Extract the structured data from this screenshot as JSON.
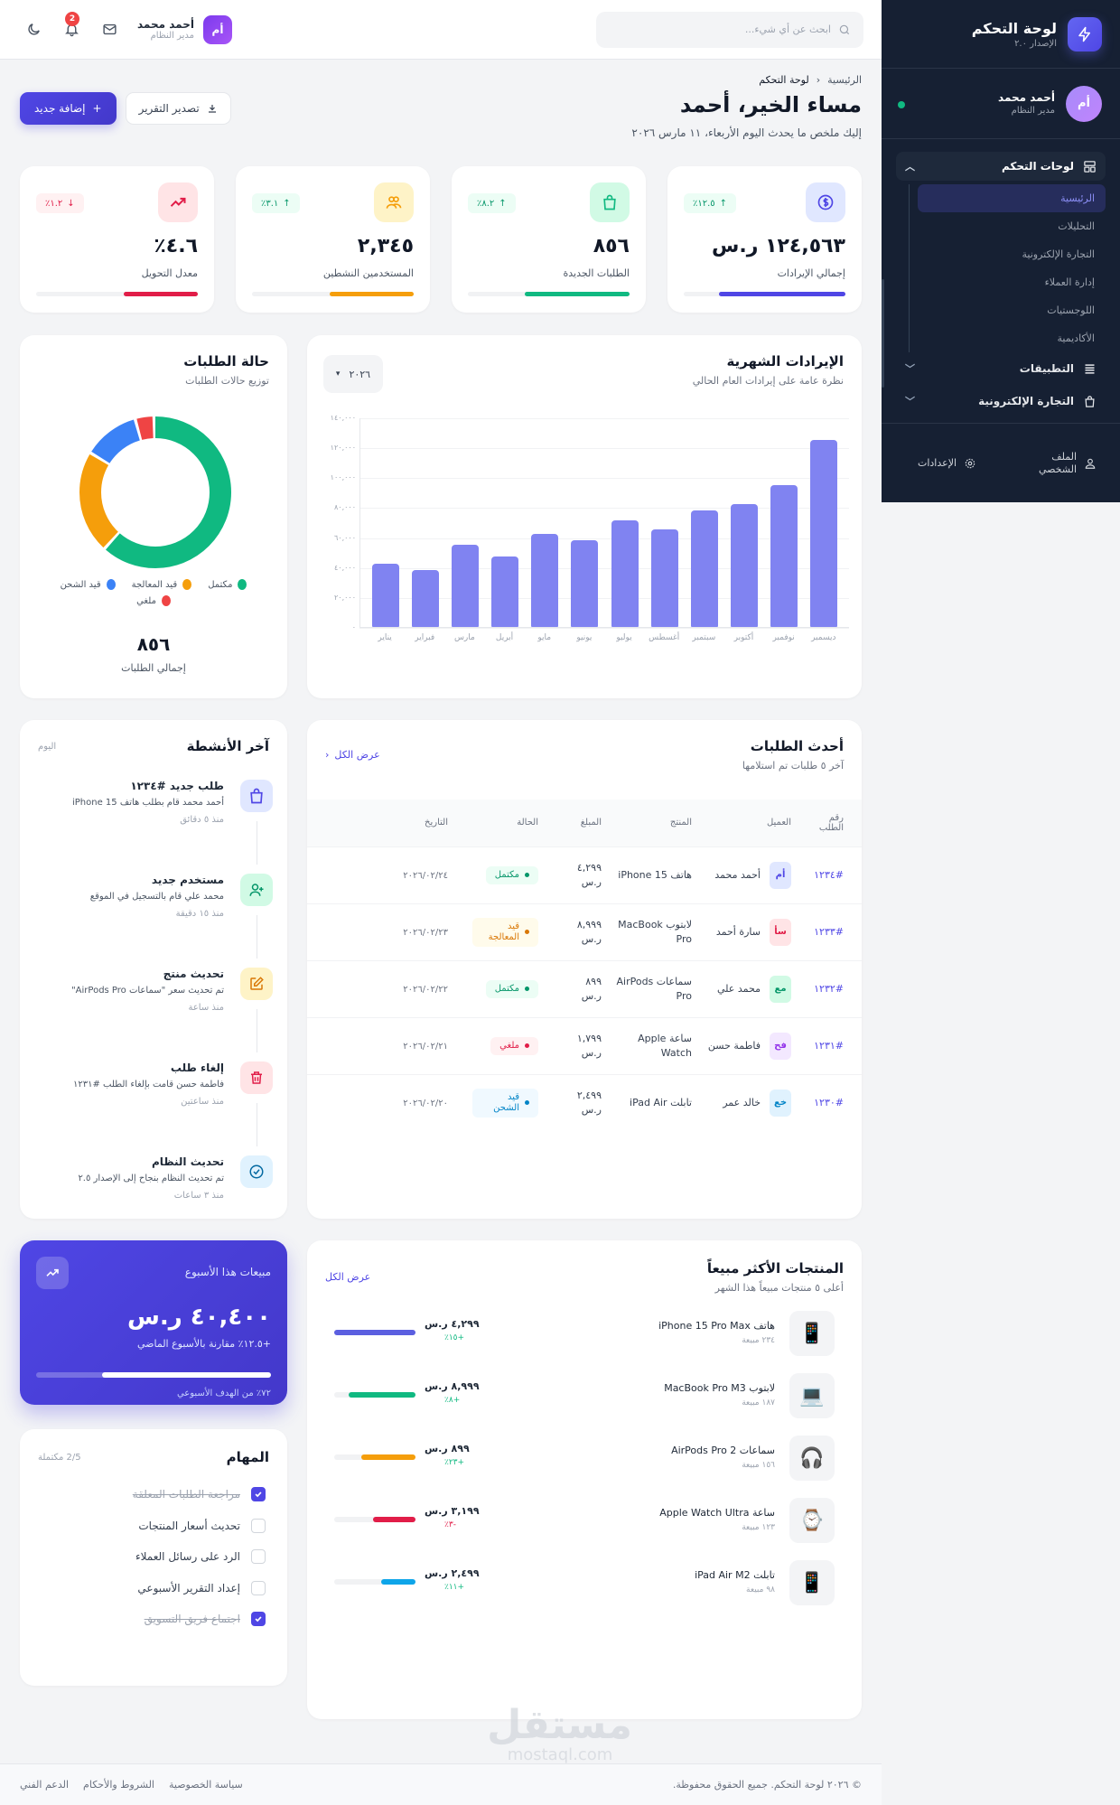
{
  "sidebar": {
    "brand_title": "لوحة التحكم",
    "brand_version": "الإصدار ٢.٠",
    "user": {
      "initials": "أم",
      "name": "أحمد محمد",
      "role": "مدير النظام",
      "online": true
    },
    "group": {
      "label": "لوحات التحكم",
      "expanded": true,
      "items": [
        {
          "label": "الرئيسية",
          "active": true
        },
        {
          "label": "التحليلات"
        },
        {
          "label": "التجارة الإلكترونية"
        },
        {
          "label": "إدارة العملاء"
        },
        {
          "label": "اللوجستيات"
        },
        {
          "label": "الأكاديمية"
        }
      ]
    },
    "items": [
      {
        "label": "التطبيقات"
      },
      {
        "label": "التجارة الإلكترونية"
      }
    ],
    "footer": {
      "profile": "الملف الشخصي",
      "settings": "الإعدادات"
    }
  },
  "topbar": {
    "search_placeholder": "ابحث عن أي شيء...",
    "notifications_count": "2",
    "user": {
      "initials": "أم",
      "name": "أحمد محمد",
      "role": "مدير النظام"
    }
  },
  "page": {
    "breadcrumb": [
      "الرئيسية",
      "لوحة التحكم"
    ],
    "title": "مساء الخير، أحمد",
    "subtitle": "إليك ملخص ما يحدث اليوم الأربعاء، ١١ مارس ٢٠٢٦",
    "add_button": "إضافة جديد",
    "export_button": "تصدير التقرير"
  },
  "stats": [
    {
      "label": "إجمالي الإيرادات",
      "value": "١٢٤,٥٦٣ ر.س",
      "change": "١٢.٥٪",
      "trend": "up",
      "icon": "dollar-icon",
      "color": "#4f46e5",
      "icon_bg": "#e0e7ff",
      "progress": 78
    },
    {
      "label": "الطلبات الجديدة",
      "value": "٨٥٦",
      "change": "٨.٢٪",
      "trend": "up",
      "icon": "bag-icon",
      "color": "#10b981",
      "icon_bg": "#d1fae5",
      "progress": 65
    },
    {
      "label": "المستخدمين النشطين",
      "value": "٢,٣٤٥",
      "change": "٣.١٪",
      "trend": "up",
      "icon": "users-icon",
      "color": "#f59e0b",
      "icon_bg": "#fef3c7",
      "progress": 52
    },
    {
      "label": "معدل التحويل",
      "value": "٤.٦٪",
      "change": "١.٢٪",
      "trend": "down",
      "icon": "trend-icon",
      "color": "#e11d48",
      "icon_bg": "#ffe4e6",
      "progress": 46
    }
  ],
  "revenue": {
    "title": "الإيرادات الشهرية",
    "subtitle": "نظرة عامة على إيرادات العام الحالي",
    "year": "٢٠٢٦"
  },
  "chart_data": [
    {
      "type": "bar",
      "title": "الإيرادات الشهرية",
      "subtitle": "نظرة عامة على إيرادات العام الحالي",
      "categories": [
        "يناير",
        "فبراير",
        "مارس",
        "أبريل",
        "مايو",
        "يونيو",
        "يوليو",
        "أغسطس",
        "سبتمبر",
        "أكتوبر",
        "نوفمبر",
        "ديسمبر"
      ],
      "values": [
        42000,
        38000,
        55000,
        47000,
        62000,
        58000,
        71000,
        65000,
        78000,
        82000,
        95000,
        125000
      ],
      "yticks": [
        "٠",
        "٢٠,٠٠٠",
        "٤٠,٠٠٠",
        "٦٠,٠٠٠",
        "٨٠,٠٠٠",
        "١٠٠,٠٠٠",
        "١٢٠,٠٠٠",
        "١٤٠,٠٠٠"
      ],
      "ylim": [
        0,
        140000
      ],
      "color": "#8083f1",
      "grid": true
    },
    {
      "type": "pie",
      "title": "حالة الطلبات",
      "subtitle": "توزيع حالات الطلبات",
      "categories": [
        "مكتمل",
        "قيد المعالجة",
        "قيد الشحن",
        "ملغي"
      ],
      "values": [
        62,
        22,
        12,
        4
      ],
      "colors": [
        "#10b981",
        "#f59e0b",
        "#3b82f6",
        "#ef4444"
      ],
      "total": "٨٥٦",
      "total_label": "إجمالي الطلبات"
    }
  ],
  "orders": {
    "title": "أحدث الطلبات",
    "subtitle": "آخر ٥ طلبات تم استلامها",
    "view_all": "عرض الكل",
    "columns": [
      "رقم الطلب",
      "العميل",
      "المنتج",
      "المبلغ",
      "الحالة",
      "التاريخ"
    ],
    "rows": [
      {
        "id": "#١٢٣٤",
        "initials": "أم",
        "av_bg": "#e0e7ff",
        "av_fg": "#4f46e5",
        "customer": "أحمد محمد",
        "product": "هاتف iPhone 15",
        "amount": "٤,٢٩٩ ر.س",
        "status": "مكتمل",
        "status_bg": "#ecfdf5",
        "status_fg": "#059669",
        "date": "٢٠٢٦/٠٢/٢٤"
      },
      {
        "id": "#١٢٣٣",
        "initials": "سأ",
        "av_bg": "#ffe4e6",
        "av_fg": "#e11d48",
        "customer": "سارة أحمد",
        "product": "لابتوب MacBook Pro",
        "amount": "٨,٩٩٩ ر.س",
        "status": "قيد المعالجة",
        "status_bg": "#fffbeb",
        "status_fg": "#d97706",
        "date": "٢٠٢٦/٠٢/٢٣"
      },
      {
        "id": "#١٢٣٢",
        "initials": "مع",
        "av_bg": "#d1fae5",
        "av_fg": "#059669",
        "customer": "محمد علي",
        "product": "سماعات AirPods Pro",
        "amount": "٨٩٩ ر.س",
        "status": "مكتمل",
        "status_bg": "#ecfdf5",
        "status_fg": "#059669",
        "date": "٢٠٢٦/٠٢/٢٢"
      },
      {
        "id": "#١٢٣١",
        "initials": "فح",
        "av_bg": "#f3e8ff",
        "av_fg": "#9333ea",
        "customer": "فاطمة حسن",
        "product": "ساعة Apple Watch",
        "amount": "١,٧٩٩ ر.س",
        "status": "ملغي",
        "status_bg": "#fff1f2",
        "status_fg": "#e11d48",
        "date": "٢٠٢٦/٠٢/٢١"
      },
      {
        "id": "#١٢٣٠",
        "initials": "خع",
        "av_bg": "#e0f2fe",
        "av_fg": "#0284c7",
        "customer": "خالد عمر",
        "product": "تابلت iPad Air",
        "amount": "٢,٤٩٩ ر.س",
        "status": "قيد الشحن",
        "status_bg": "#f0f9ff",
        "status_fg": "#0284c7",
        "date": "٢٠٢٦/٠٢/٢٠"
      }
    ]
  },
  "activity": {
    "title": "آخر الأنشطة",
    "period": "اليوم",
    "items": [
      {
        "title": "طلب جديد #١٢٣٤",
        "desc": "أحمد محمد قام بطلب هاتف iPhone 15",
        "time": "منذ ٥ دقائق",
        "icon": "bag-icon",
        "bg": "#e0e7ff",
        "fg": "#4f46e5"
      },
      {
        "title": "مستخدم جديد",
        "desc": "محمد علي قام بالتسجيل في الموقع",
        "time": "منذ ١٥ دقيقة",
        "icon": "user-plus-icon",
        "bg": "#d1fae5",
        "fg": "#059669"
      },
      {
        "title": "تحديث منتج",
        "desc": "تم تحديث سعر \"سماعات AirPods Pro\"",
        "time": "منذ ساعة",
        "icon": "edit-icon",
        "bg": "#fef3c7",
        "fg": "#d97706"
      },
      {
        "title": "إلغاء طلب",
        "desc": "فاطمة حسن قامت بإلغاء الطلب #١٢٣١",
        "time": "منذ ساعتين",
        "icon": "trash-icon",
        "bg": "#ffe4e6",
        "fg": "#e11d48"
      },
      {
        "title": "تحديث النظام",
        "desc": "تم تحديث النظام بنجاح إلى الإصدار ٢.٥",
        "time": "منذ ٣ ساعات",
        "icon": "check-circle-icon",
        "bg": "#e0f2fe",
        "fg": "#0369a1"
      }
    ]
  },
  "weekly": {
    "label": "مبيعات هذا الأسبوع",
    "value": "٤٠,٤٠٠ ر.س",
    "comparison": "+١٢.٥٪ مقارنة بالأسبوع الماضي",
    "progress": 72,
    "target": "٧٢٪ من الهدف الأسبوعي"
  },
  "tasks": {
    "title": "المهام",
    "count": "2/5 مكتملة",
    "items": [
      {
        "label": "مراجعة الطلبات المعلقة",
        "done": true
      },
      {
        "label": "تحديث أسعار المنتجات",
        "done": false
      },
      {
        "label": "الرد على رسائل العملاء",
        "done": false
      },
      {
        "label": "إعداد التقرير الأسبوعي",
        "done": false
      },
      {
        "label": "اجتماع فريق التسويق",
        "done": true
      }
    ]
  },
  "top_products": {
    "title": "المنتجات الأكثر مبيعاً",
    "subtitle": "أعلى ٥ منتجات مبيعاً هذا الشهر",
    "view_all": "عرض الكل",
    "items": [
      {
        "name": "هاتف iPhone 15 Pro Max",
        "sales": "٢٣٤ مبيعة",
        "price": "٤,٢٩٩ ر.س",
        "change": "+١٥٪",
        "positive": true,
        "bar": 100,
        "color": "#5b5fe0",
        "emoji": "📱"
      },
      {
        "name": "لابتوب MacBook Pro M3",
        "sales": "١٨٧ مبيعة",
        "price": "٨,٩٩٩ ر.س",
        "change": "+٨٪",
        "positive": true,
        "bar": 82,
        "color": "#10b981",
        "emoji": "💻"
      },
      {
        "name": "سماعات AirPods Pro 2",
        "sales": "١٥٦ مبيعة",
        "price": "٨٩٩ ر.س",
        "change": "+٢٣٪",
        "positive": true,
        "bar": 67,
        "color": "#f59e0b",
        "emoji": "🎧"
      },
      {
        "name": "ساعة Apple Watch Ultra",
        "sales": "١٢٣ مبيعة",
        "price": "٣,١٩٩ ر.س",
        "change": "-٣٪",
        "positive": false,
        "bar": 52,
        "color": "#e11d48",
        "emoji": "⌚"
      },
      {
        "name": "تابلت iPad Air M2",
        "sales": "٩٨ مبيعة",
        "price": "٢,٤٩٩ ر.س",
        "change": "+١١٪",
        "positive": true,
        "bar": 42,
        "color": "#0ea5e9",
        "emoji": "📱"
      }
    ]
  },
  "footer": {
    "copyright": "© ٢٠٢٦ لوحة التحكم. جميع الحقوق محفوظة.",
    "links": [
      "سياسة الخصوصية",
      "الشروط والأحكام",
      "الدعم الفني"
    ]
  },
  "watermark": {
    "text": "مستقل",
    "sub": "mostaql.com"
  }
}
